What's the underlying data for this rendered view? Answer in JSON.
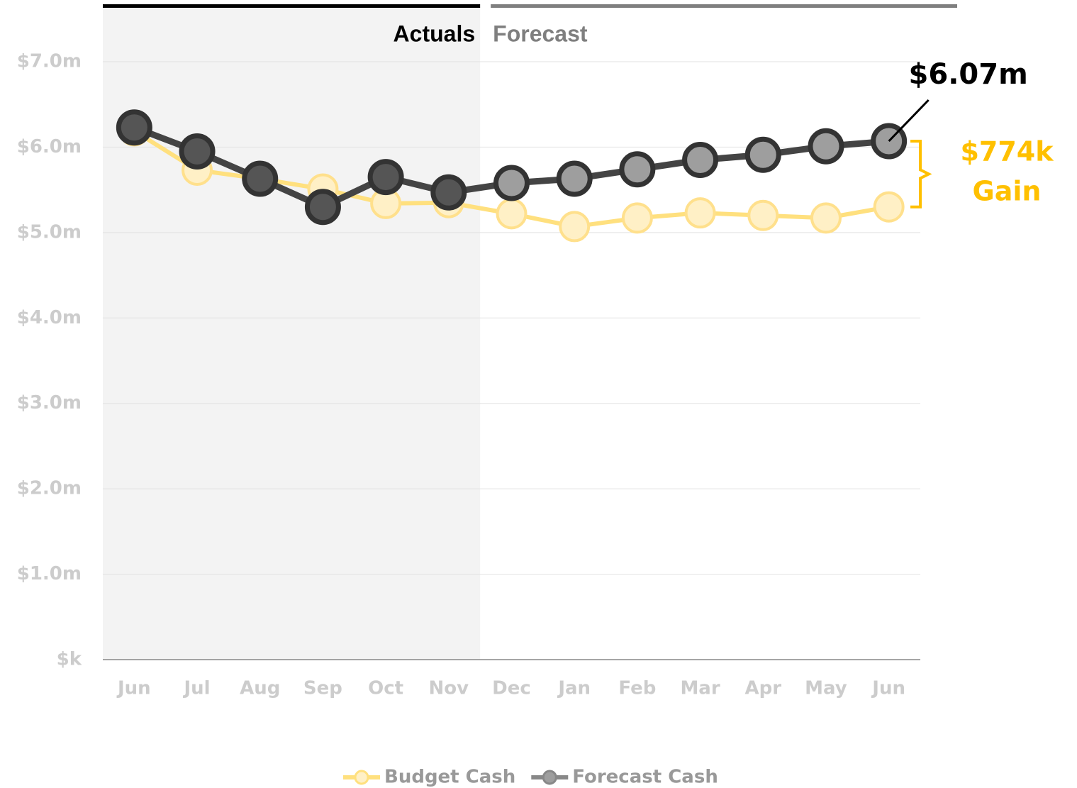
{
  "chart_data": {
    "type": "line",
    "categories": [
      "Jun",
      "Jul",
      "Aug",
      "Sep",
      "Oct",
      "Nov",
      "Dec",
      "Jan",
      "Feb",
      "Mar",
      "Apr",
      "May",
      "Jun"
    ],
    "periods": [
      {
        "label": "Actuals",
        "from": 0,
        "to": 5,
        "color": "#000000",
        "shade": "#f3f3f3"
      },
      {
        "label": "Forecast",
        "from": 6,
        "to": 12,
        "color": "#7f7f7f"
      }
    ],
    "series": [
      {
        "name": "Budget Cash",
        "color": "#ffe07e",
        "marker_fill": "#fff0c6",
        "values": [
          6.19,
          5.73,
          5.63,
          5.51,
          5.34,
          5.35,
          5.22,
          5.07,
          5.17,
          5.23,
          5.2,
          5.17,
          5.3
        ]
      },
      {
        "name": "Forecast Cash",
        "color": "#444444",
        "marker_fill": "#9e9e9e",
        "actual_marker_fill": "#555555",
        "values": [
          6.23,
          5.95,
          5.63,
          5.3,
          5.65,
          5.47,
          5.58,
          5.63,
          5.74,
          5.85,
          5.91,
          6.01,
          6.07
        ],
        "value_labels": [
          null,
          null,
          null,
          null,
          null,
          null,
          null,
          null,
          null,
          null,
          null,
          null,
          "$6.07m"
        ]
      }
    ],
    "ylim": [
      0,
      7
    ],
    "yticks": [
      {
        "value": 0,
        "label": "$k"
      },
      {
        "value": 1,
        "label": "$1.0m"
      },
      {
        "value": 2,
        "label": "$2.0m"
      },
      {
        "value": 3,
        "label": "$3.0m"
      },
      {
        "value": 4,
        "label": "$4.0m"
      },
      {
        "value": 5,
        "label": "$5.0m"
      },
      {
        "value": 6,
        "label": "$6.0m"
      },
      {
        "value": 7,
        "label": "$7.0m"
      }
    ],
    "grid": true,
    "annotations": [
      {
        "text": "$774k"
      },
      {
        "text": "Gain"
      }
    ],
    "annotation_color": "#ffc000",
    "legend": "bottom"
  }
}
